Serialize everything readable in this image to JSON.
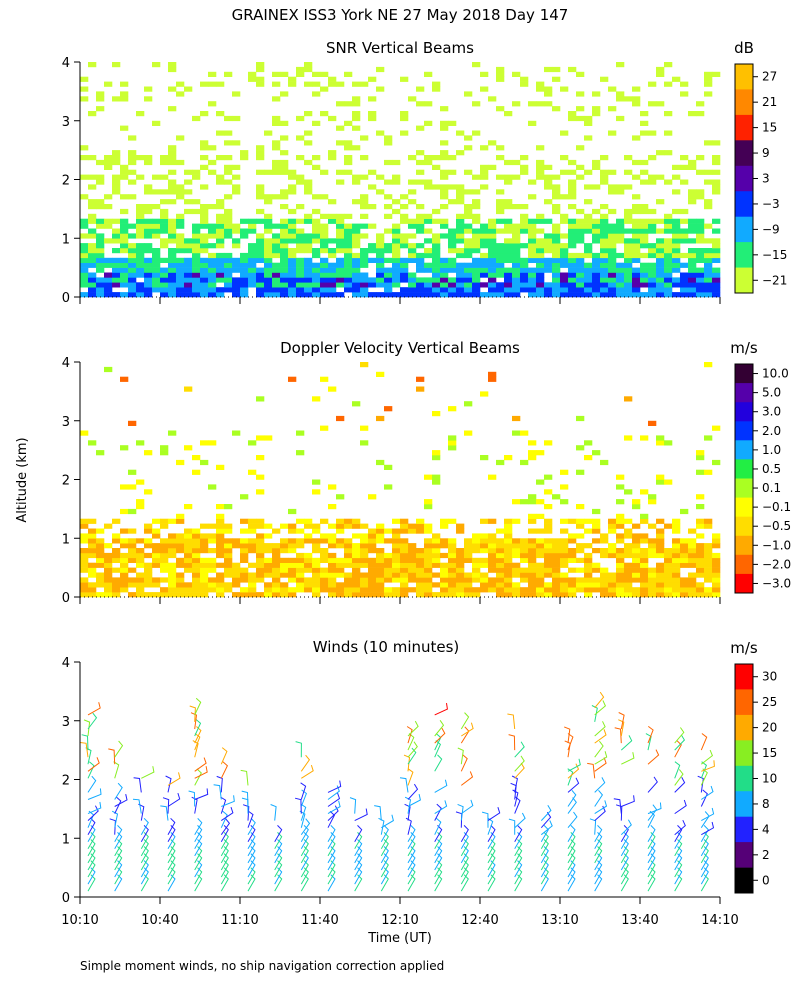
{
  "title": "GRAINEX ISS3 York NE  27 May 2018 Day 147",
  "ylabel": "Altitude (km)",
  "xlabel": "Time (UT)",
  "footnote": "Simple moment winds, no ship navigation correction applied",
  "x_ticks": [
    "10:10",
    "10:40",
    "11:10",
    "11:40",
    "12:10",
    "12:40",
    "13:10",
    "13:40",
    "14:10"
  ],
  "y_ticks": [
    "0",
    "1",
    "2",
    "3",
    "4"
  ],
  "chart_data": [
    {
      "type": "heatmap",
      "title": "SNR Vertical Beams",
      "colorbar_unit": "dB",
      "colorbar_labels": [
        "27",
        "21",
        "15",
        "9",
        "3",
        "−3",
        "−9",
        "−15",
        "−21"
      ],
      "colors": [
        "#ffc000",
        "#ff8800",
        "#ff2200",
        "#440055",
        "#5500aa",
        "#0033ff",
        "#11aaff",
        "#22ee77",
        "#ccff33"
      ],
      "xlim": [
        "10:10",
        "14:10"
      ],
      "ylim": [
        0,
        4
      ],
      "description_layers": [
        {
          "altitude_km": [
            0.1,
            0.6
          ],
          "dominant": "-3 to 9 dB"
        },
        {
          "altitude_km": [
            0.6,
            1.3
          ],
          "dominant": "-15 to -9 dB"
        },
        {
          "altitude_km": [
            1.3,
            4.0
          ],
          "dominant": "-21 to -15 dB (patchy)"
        }
      ]
    },
    {
      "type": "heatmap",
      "title": "Doppler Velocity Vertical Beams",
      "colorbar_unit": "m/s",
      "colorbar_labels": [
        "10.0",
        "5.0",
        "3.0",
        "2.0",
        "1.0",
        "0.5",
        "0.1",
        "−0.1",
        "−0.5",
        "−1.0",
        "−2.0",
        "−3.0"
      ],
      "colors": [
        "#330033",
        "#5500aa",
        "#2200dd",
        "#0033ff",
        "#11aaff",
        "#22ee44",
        "#aaff22",
        "#ffff00",
        "#ffdd00",
        "#ffaa00",
        "#ff6600",
        "#ff0000"
      ],
      "xlim": [
        "10:10",
        "14:10"
      ],
      "ylim": [
        0,
        4
      ],
      "description_layers": [
        {
          "altitude_km": [
            0.1,
            1.3
          ],
          "dominant": "-0.5 to -0.1 m/s"
        },
        {
          "altitude_km": [
            1.3,
            4.0
          ],
          "dominant": "sparse, mostly -0.1 to 0.5 m/s"
        }
      ]
    },
    {
      "type": "scatter",
      "title": "Winds (10 minutes)",
      "colorbar_unit": "m/s",
      "colorbar_labels": [
        "30",
        "25",
        "20",
        "15",
        "10",
        "8",
        "4",
        "2",
        "0"
      ],
      "colors": [
        "#ff0000",
        "#ff6600",
        "#ffaa00",
        "#88ee22",
        "#22dd88",
        "#11aaff",
        "#2222ff",
        "#550077",
        "#000000"
      ],
      "xlim": [
        "10:10",
        "14:10"
      ],
      "ylim": [
        0,
        4
      ],
      "profile_interval_min": 10,
      "note": "wind barbs per 10-minute profile; low levels 10-15 m/s, upper levels up to 30 m/s near 11:20-12:40"
    }
  ]
}
